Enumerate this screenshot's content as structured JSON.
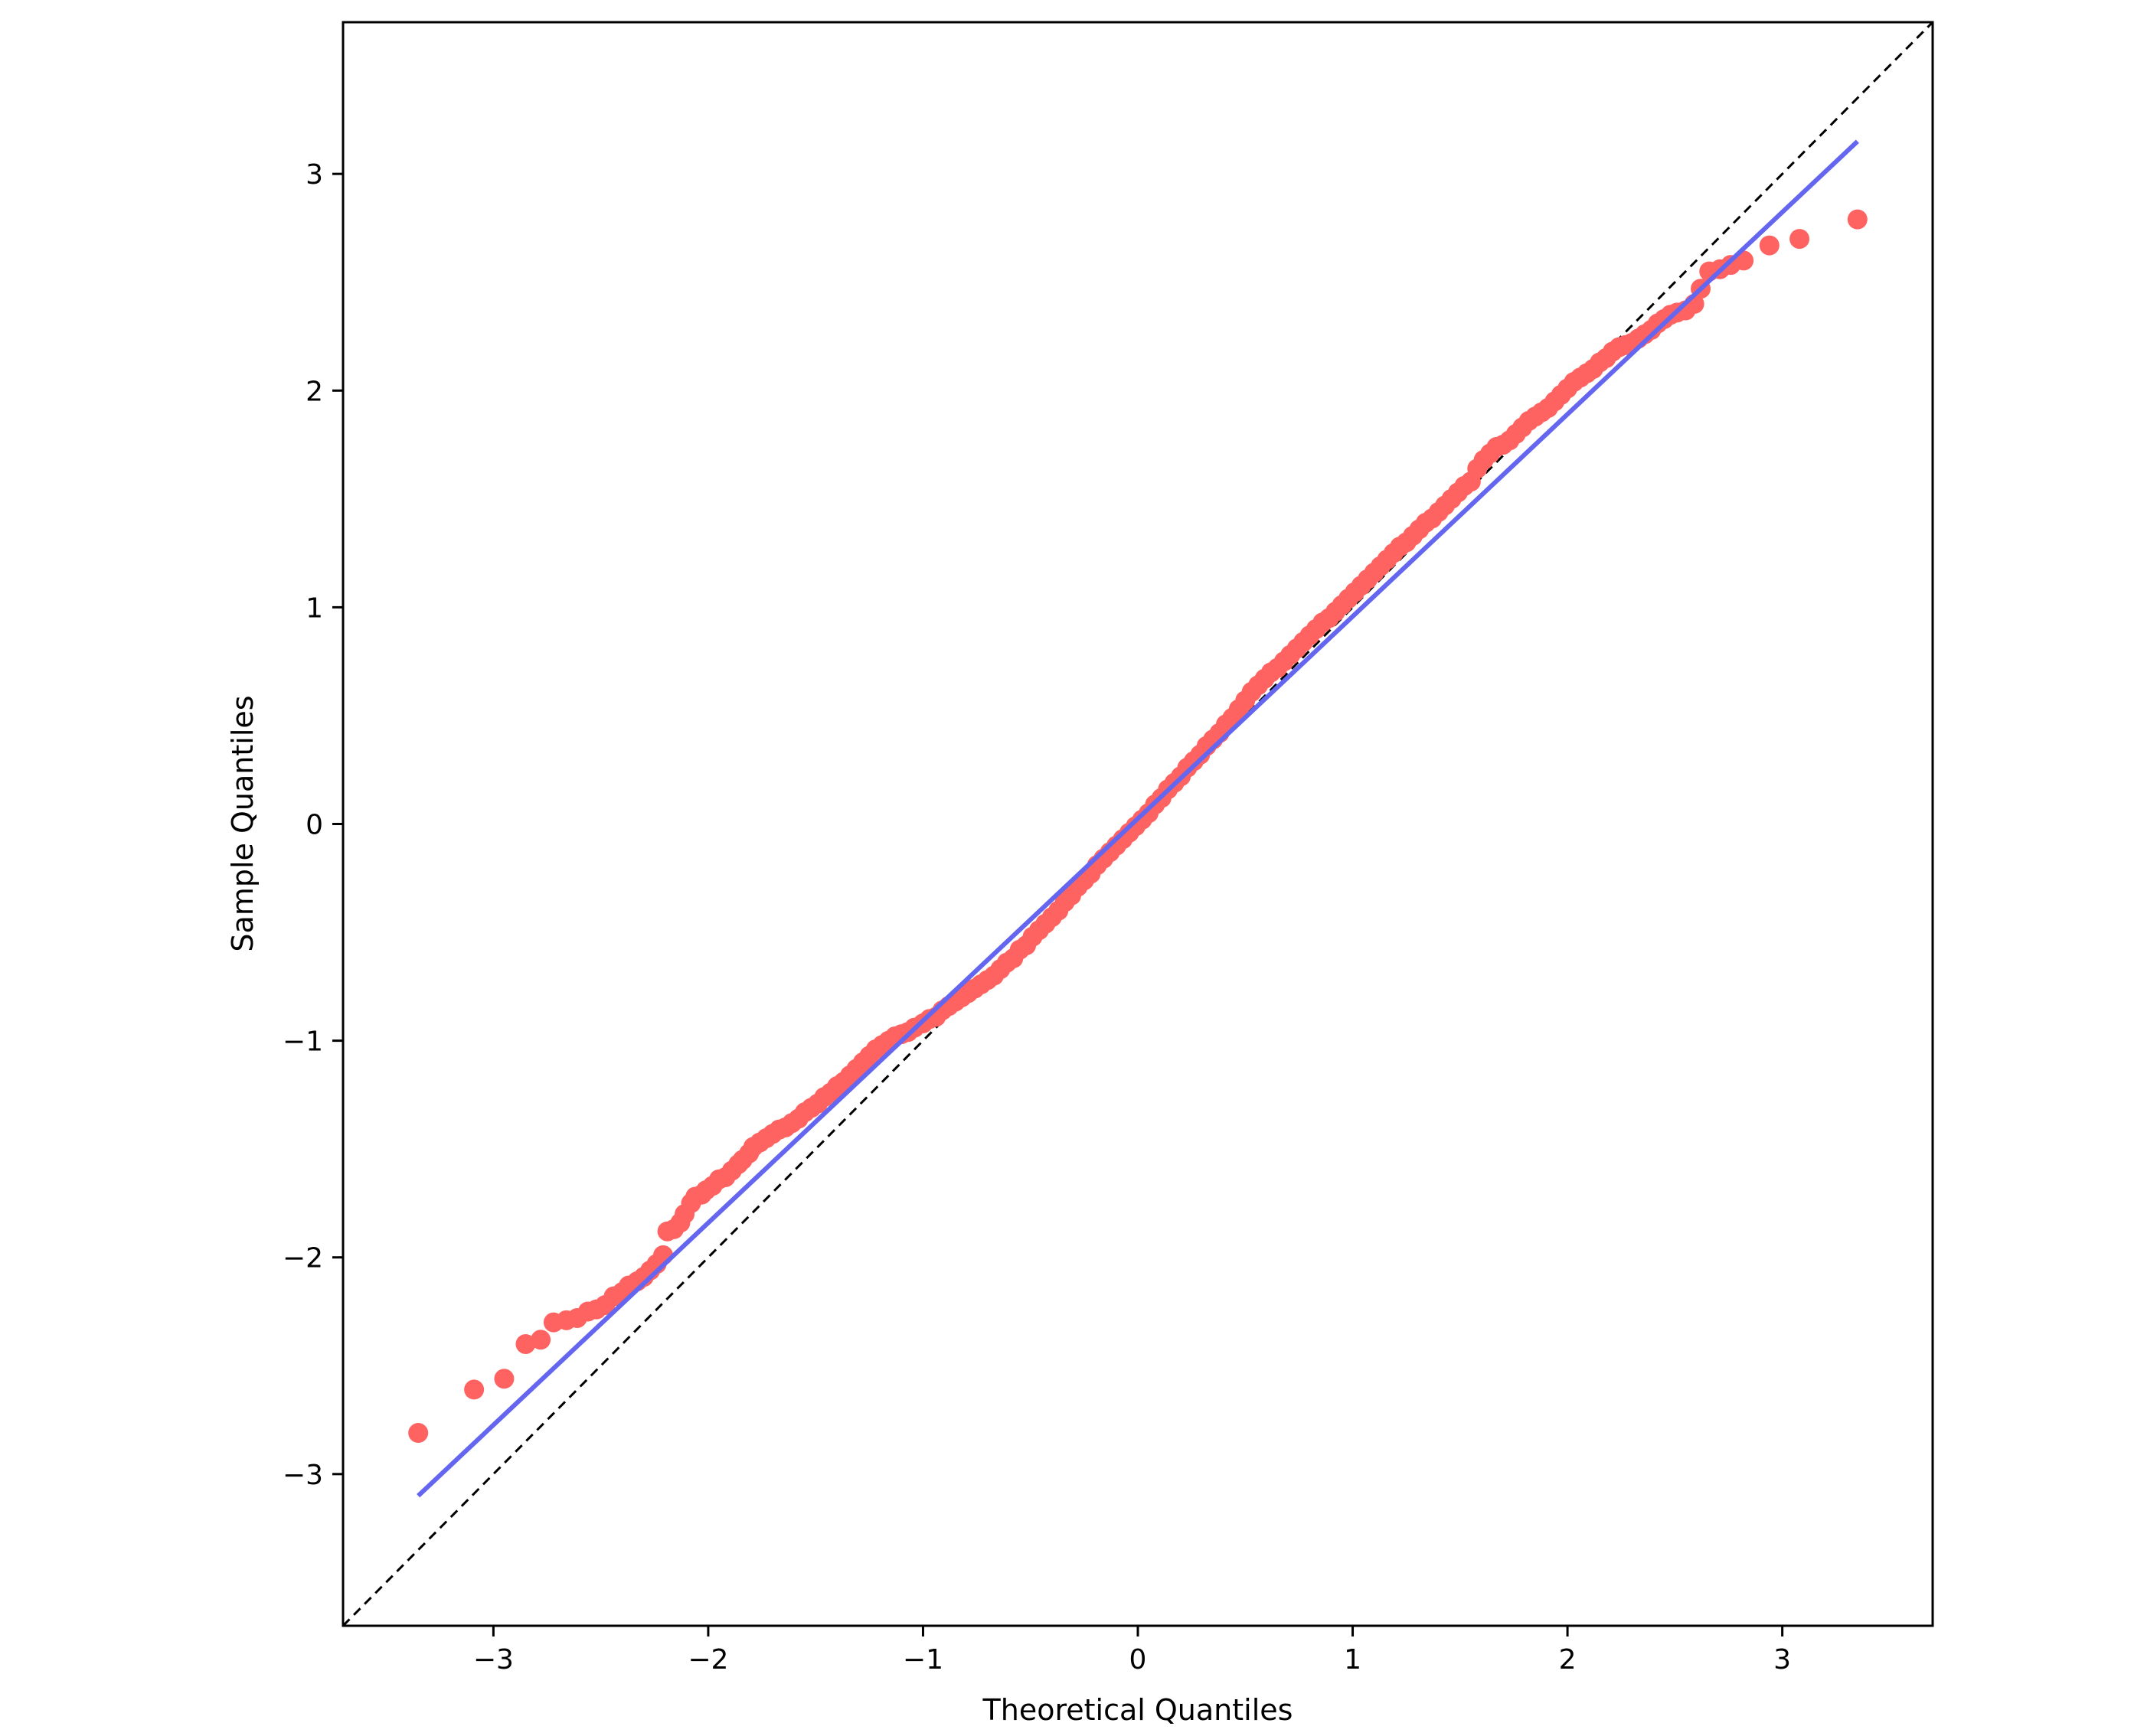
{
  "chart_data": {
    "type": "scatter",
    "title": "",
    "xlabel": "Theoretical Quantiles",
    "ylabel": "Sample Quantiles",
    "xlim": [
      -3.7,
      3.7
    ],
    "ylim": [
      -3.7,
      3.7
    ],
    "xticks": [
      -3,
      -2,
      -1,
      0,
      1,
      2,
      3
    ],
    "yticks": [
      -3,
      -2,
      -1,
      0,
      1,
      2,
      3
    ],
    "xtick_labels": [
      "−3",
      "−2",
      "−1",
      "0",
      "1",
      "2",
      "3"
    ],
    "ytick_labels": [
      "−3",
      "−2",
      "−1",
      "0",
      "1",
      "2",
      "3"
    ],
    "grid": false,
    "legend": "none",
    "colors": {
      "points": "#ff6361",
      "fit_line": "#6466f0",
      "reference_line": "#000000"
    },
    "reference_line": {
      "style": "dashed",
      "slope": 1,
      "intercept": 0
    },
    "fit_line": {
      "x": [
        -3.35,
        3.35
      ],
      "y": [
        -3.1,
        3.15
      ]
    },
    "points": [
      [
        -3.35,
        -2.81
      ],
      [
        -3.09,
        -2.61
      ],
      [
        -2.95,
        -2.56
      ],
      [
        -2.85,
        -2.4
      ],
      [
        -2.78,
        -2.38
      ],
      [
        -2.72,
        -2.3
      ],
      [
        -2.66,
        -2.29
      ],
      [
        -2.61,
        -2.28
      ],
      [
        -2.56,
        -2.25
      ],
      [
        -2.52,
        -2.24
      ],
      [
        -2.48,
        -2.22
      ],
      [
        -2.44,
        -2.18
      ],
      [
        -2.4,
        -2.16
      ],
      [
        -2.37,
        -2.13
      ],
      [
        -2.33,
        -2.11
      ],
      [
        -2.3,
        -2.09
      ],
      [
        -2.27,
        -2.06
      ],
      [
        -2.24,
        -2.03
      ],
      [
        -2.21,
        -1.99
      ],
      [
        -2.19,
        -1.88
      ],
      [
        -2.16,
        -1.87
      ],
      [
        -2.13,
        -1.84
      ],
      [
        -2.11,
        -1.8
      ],
      [
        -2.08,
        -1.75
      ],
      [
        -2.06,
        -1.72
      ],
      [
        -2.03,
        -1.71
      ],
      [
        -2.01,
        -1.69
      ],
      [
        -1.98,
        -1.67
      ],
      [
        -1.95,
        -1.64
      ],
      [
        -1.92,
        -1.63
      ],
      [
        -1.89,
        -1.6
      ],
      [
        -1.86,
        -1.57
      ],
      [
        -1.84,
        -1.55
      ],
      [
        -1.81,
        -1.52
      ],
      [
        -1.79,
        -1.49
      ],
      [
        -1.76,
        -1.47
      ],
      [
        -1.73,
        -1.45
      ],
      [
        -1.7,
        -1.43
      ],
      [
        -1.67,
        -1.41
      ],
      [
        -1.64,
        -1.4
      ],
      [
        -1.61,
        -1.38
      ],
      [
        -1.58,
        -1.36
      ],
      [
        -1.55,
        -1.33
      ],
      [
        -1.52,
        -1.31
      ],
      [
        -1.49,
        -1.29
      ],
      [
        -1.46,
        -1.26
      ],
      [
        -1.43,
        -1.24
      ],
      [
        -1.4,
        -1.21
      ],
      [
        -1.37,
        -1.19
      ],
      [
        -1.34,
        -1.16
      ],
      [
        -1.31,
        -1.13
      ],
      [
        -1.28,
        -1.1
      ],
      [
        -1.25,
        -1.07
      ],
      [
        -1.22,
        -1.04
      ],
      [
        -1.19,
        -1.02
      ],
      [
        -1.16,
        -1.0
      ],
      [
        -1.13,
        -0.98
      ],
      [
        -1.1,
        -0.97
      ],
      [
        -1.07,
        -0.96
      ],
      [
        -1.04,
        -0.94
      ],
      [
        -1.0,
        -0.92
      ],
      [
        -0.97,
        -0.9
      ],
      [
        -0.94,
        -0.89
      ],
      [
        -0.91,
        -0.86
      ],
      [
        -0.88,
        -0.84
      ],
      [
        -0.85,
        -0.82
      ],
      [
        -0.82,
        -0.8
      ],
      [
        -0.79,
        -0.78
      ],
      [
        -0.76,
        -0.76
      ],
      [
        -0.73,
        -0.74
      ],
      [
        -0.7,
        -0.72
      ],
      [
        -0.67,
        -0.7
      ],
      [
        -0.64,
        -0.67
      ],
      [
        -0.61,
        -0.64
      ],
      [
        -0.58,
        -0.62
      ],
      [
        -0.55,
        -0.58
      ],
      [
        -0.52,
        -0.56
      ],
      [
        -0.49,
        -0.52
      ],
      [
        -0.46,
        -0.49
      ],
      [
        -0.43,
        -0.46
      ],
      [
        -0.4,
        -0.43
      ],
      [
        -0.37,
        -0.4
      ],
      [
        -0.34,
        -0.36
      ],
      [
        -0.31,
        -0.33
      ],
      [
        -0.28,
        -0.29
      ],
      [
        -0.25,
        -0.26
      ],
      [
        -0.22,
        -0.23
      ],
      [
        -0.19,
        -0.19
      ],
      [
        -0.16,
        -0.16
      ],
      [
        -0.13,
        -0.13
      ],
      [
        -0.1,
        -0.1
      ],
      [
        -0.07,
        -0.07
      ],
      [
        -0.04,
        -0.04
      ],
      [
        -0.01,
        -0.01
      ],
      [
        0.02,
        0.02
      ],
      [
        0.05,
        0.05
      ],
      [
        0.08,
        0.09
      ],
      [
        0.11,
        0.12
      ],
      [
        0.14,
        0.16
      ],
      [
        0.17,
        0.19
      ],
      [
        0.2,
        0.22
      ],
      [
        0.23,
        0.26
      ],
      [
        0.26,
        0.29
      ],
      [
        0.29,
        0.32
      ],
      [
        0.32,
        0.36
      ],
      [
        0.35,
        0.39
      ],
      [
        0.38,
        0.42
      ],
      [
        0.41,
        0.46
      ],
      [
        0.44,
        0.49
      ],
      [
        0.47,
        0.53
      ],
      [
        0.5,
        0.57
      ],
      [
        0.53,
        0.61
      ],
      [
        0.56,
        0.64
      ],
      [
        0.59,
        0.67
      ],
      [
        0.62,
        0.7
      ],
      [
        0.65,
        0.72
      ],
      [
        0.68,
        0.75
      ],
      [
        0.71,
        0.78
      ],
      [
        0.74,
        0.81
      ],
      [
        0.77,
        0.84
      ],
      [
        0.8,
        0.87
      ],
      [
        0.83,
        0.9
      ],
      [
        0.86,
        0.93
      ],
      [
        0.89,
        0.95
      ],
      [
        0.92,
        0.98
      ],
      [
        0.95,
        1.01
      ],
      [
        0.98,
        1.04
      ],
      [
        1.01,
        1.07
      ],
      [
        1.04,
        1.1
      ],
      [
        1.07,
        1.13
      ],
      [
        1.1,
        1.16
      ],
      [
        1.13,
        1.19
      ],
      [
        1.16,
        1.22
      ],
      [
        1.19,
        1.25
      ],
      [
        1.22,
        1.28
      ],
      [
        1.25,
        1.3
      ],
      [
        1.28,
        1.33
      ],
      [
        1.31,
        1.36
      ],
      [
        1.34,
        1.39
      ],
      [
        1.37,
        1.41
      ],
      [
        1.4,
        1.44
      ],
      [
        1.43,
        1.47
      ],
      [
        1.46,
        1.5
      ],
      [
        1.49,
        1.53
      ],
      [
        1.52,
        1.56
      ],
      [
        1.55,
        1.58
      ],
      [
        1.58,
        1.64
      ],
      [
        1.61,
        1.68
      ],
      [
        1.64,
        1.71
      ],
      [
        1.67,
        1.74
      ],
      [
        1.7,
        1.75
      ],
      [
        1.73,
        1.77
      ],
      [
        1.76,
        1.8
      ],
      [
        1.79,
        1.83
      ],
      [
        1.82,
        1.86
      ],
      [
        1.85,
        1.88
      ],
      [
        1.88,
        1.9
      ],
      [
        1.91,
        1.92
      ],
      [
        1.94,
        1.95
      ],
      [
        1.97,
        1.98
      ],
      [
        2.0,
        2.01
      ],
      [
        2.03,
        2.04
      ],
      [
        2.06,
        2.06
      ],
      [
        2.09,
        2.08
      ],
      [
        2.12,
        2.1
      ],
      [
        2.15,
        2.13
      ],
      [
        2.18,
        2.15
      ],
      [
        2.21,
        2.18
      ],
      [
        2.24,
        2.2
      ],
      [
        2.27,
        2.21
      ],
      [
        2.3,
        2.22
      ],
      [
        2.33,
        2.24
      ],
      [
        2.36,
        2.26
      ],
      [
        2.39,
        2.28
      ],
      [
        2.42,
        2.31
      ],
      [
        2.45,
        2.33
      ],
      [
        2.48,
        2.35
      ],
      [
        2.51,
        2.36
      ],
      [
        2.55,
        2.37
      ],
      [
        2.59,
        2.4
      ],
      [
        2.62,
        2.47
      ],
      [
        2.66,
        2.55
      ],
      [
        2.71,
        2.56
      ],
      [
        2.76,
        2.58
      ],
      [
        2.82,
        2.6
      ],
      [
        2.94,
        2.67
      ],
      [
        3.08,
        2.7
      ],
      [
        3.35,
        2.79
      ]
    ]
  }
}
